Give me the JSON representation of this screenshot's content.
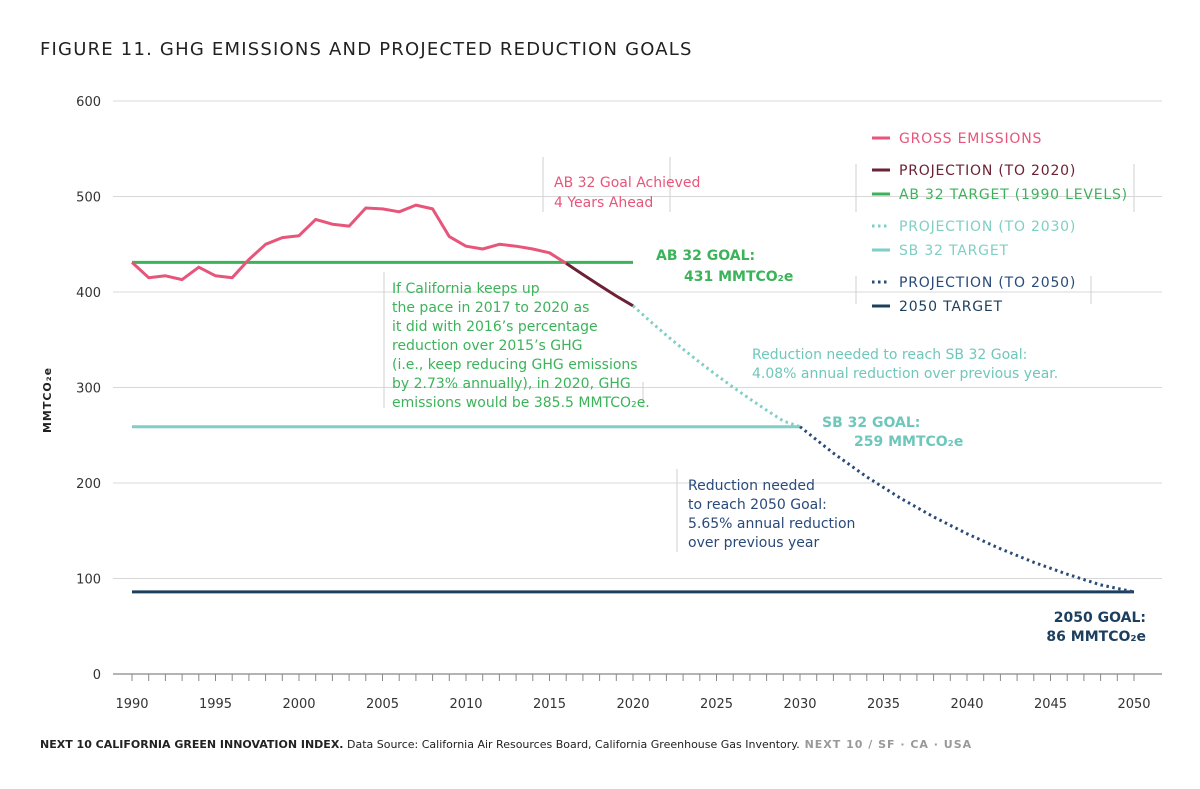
{
  "title": "FIGURE 11. GHG EMISSIONS AND PROJECTED REDUCTION GOALS",
  "footer": {
    "bold": "NEXT 10 CALIFORNIA GREEN INNOVATION INDEX.",
    "source": " Data Source: California Air Resources Board, California Greenhouse Gas Inventory.",
    "brand": " NEXT 10  /  SF · CA · USA"
  },
  "colors": {
    "gross": "#e8557a",
    "projection_2020": "#6b2235",
    "ab32_target": "#3cb35a",
    "projection_2030": "#7fcfc4",
    "sb32_target": "#7fcfc4",
    "projection_2050": "#2a4a7a",
    "target_2050": "#1d3f5e",
    "grid": "#d8d8d8",
    "axis": "#888888"
  },
  "legend": [
    {
      "label": "GROSS EMISSIONS",
      "color_key": "gross",
      "style": "solid"
    },
    {
      "label": "PROJECTION (TO 2020)",
      "color_key": "projection_2020",
      "style": "solid"
    },
    {
      "label": "AB 32 TARGET (1990 LEVELS)",
      "color_key": "ab32_target",
      "style": "solid"
    },
    {
      "label": "PROJECTION (TO 2030)",
      "color_key": "projection_2030",
      "style": "dotted"
    },
    {
      "label": "SB 32 TARGET",
      "color_key": "sb32_target",
      "style": "solid"
    },
    {
      "label": "PROJECTION (TO 2050)",
      "color_key": "projection_2050",
      "style": "dotted"
    },
    {
      "label": "2050 TARGET",
      "color_key": "target_2050",
      "style": "solid"
    }
  ],
  "annotations": {
    "ab32_achieved": [
      "AB 32 Goal Achieved",
      "4 Years Ahead"
    ],
    "ab32_goal": [
      "AB 32 GOAL:",
      "431 MMTCO₂e"
    ],
    "if_california": [
      "If California keeps up",
      "the pace in 2017 to 2020 as",
      "it did with 2016’s percentage",
      "reduction over 2015’s GHG",
      "(i.e., keep reducing GHG emissions",
      "by 2.73% annually), in 2020, GHG",
      "emissions would be 385.5 MMTCO₂e."
    ],
    "sb32_reduction": [
      "Reduction needed to reach SB 32 Goal:",
      "4.08% annual reduction over previous year."
    ],
    "sb32_goal": [
      "SB 32 GOAL:",
      "259 MMTCO₂e"
    ],
    "goal2050_reduction": [
      "Reduction needed",
      "to reach 2050 Goal:",
      "5.65% annual reduction",
      "over previous year"
    ],
    "goal2050": [
      "2050 GOAL:",
      "86 MMTCO₂e"
    ]
  },
  "chart_data": {
    "type": "line",
    "title": "FIGURE 11. GHG EMISSIONS AND PROJECTED REDUCTION GOALS",
    "xlabel": "",
    "ylabel": "MMTCO₂e",
    "xlim": [
      1990,
      2050
    ],
    "ylim": [
      0,
      600
    ],
    "x_ticks": [
      1990,
      1995,
      2000,
      2005,
      2010,
      2015,
      2020,
      2025,
      2030,
      2035,
      2040,
      2045,
      2050
    ],
    "y_ticks": [
      0,
      100,
      200,
      300,
      400,
      500,
      600
    ],
    "grid": true,
    "legend_position": "top-right",
    "series": [
      {
        "name": "GROSS EMISSIONS",
        "style": "solid",
        "x": [
          1990,
          1991,
          1992,
          1993,
          1994,
          1995,
          1996,
          1997,
          1998,
          1999,
          2000,
          2001,
          2002,
          2003,
          2004,
          2005,
          2006,
          2007,
          2008,
          2009,
          2010,
          2011,
          2012,
          2013,
          2014,
          2015,
          2016
        ],
        "y": [
          431,
          415,
          417,
          413,
          426,
          417,
          415,
          434,
          450,
          457,
          459,
          476,
          471,
          469,
          488,
          487,
          484,
          491,
          487,
          458,
          448,
          445,
          450,
          448,
          445,
          441,
          430
        ]
      },
      {
        "name": "PROJECTION (TO 2020)",
        "style": "solid",
        "x": [
          2016,
          2017,
          2018,
          2019,
          2020
        ],
        "y": [
          430,
          418.3,
          406.9,
          395.8,
          385.5
        ]
      },
      {
        "name": "AB 32 TARGET (1990 LEVELS)",
        "style": "solid",
        "x": [
          1990,
          2020
        ],
        "y": [
          431,
          431
        ]
      },
      {
        "name": "PROJECTION (TO 2030)",
        "style": "dotted",
        "x": [
          2020,
          2021,
          2022,
          2023,
          2024,
          2025,
          2026,
          2027,
          2028,
          2029,
          2030
        ],
        "y": [
          385.5,
          369.8,
          354.7,
          340.2,
          326.3,
          313.0,
          300.2,
          288.0,
          276.2,
          264.9,
          259
        ]
      },
      {
        "name": "SB 32 TARGET",
        "style": "solid",
        "x": [
          1990,
          2030
        ],
        "y": [
          259,
          259
        ]
      },
      {
        "name": "PROJECTION (TO 2050)",
        "style": "dotted",
        "x": [
          2030,
          2032,
          2034,
          2036,
          2038,
          2040,
          2042,
          2044,
          2046,
          2048,
          2050
        ],
        "y": [
          259,
          231.2,
          206.4,
          184.3,
          164.5,
          146.9,
          131.1,
          117.0,
          104.5,
          93.3,
          86
        ]
      },
      {
        "name": "2050 TARGET",
        "style": "solid",
        "x": [
          1990,
          2050
        ],
        "y": [
          86,
          86
        ]
      }
    ]
  }
}
